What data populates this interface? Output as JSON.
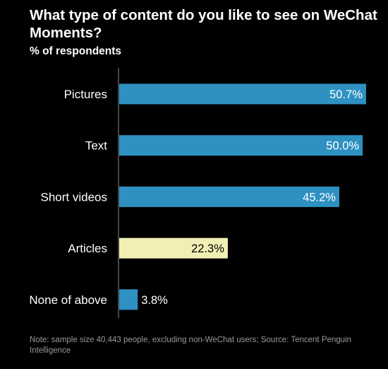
{
  "chart_data": {
    "type": "bar",
    "orientation": "horizontal",
    "title": "What type of content do you like to see on WeChat Moments?",
    "subtitle": "% of respondents",
    "categories": [
      "Pictures",
      "Text",
      "Short videos",
      "Articles",
      "None of above"
    ],
    "values": [
      50.7,
      50.0,
      45.2,
      22.3,
      3.8
    ],
    "value_labels": [
      "50.7%",
      "50.0%",
      "45.2%",
      "22.3%",
      "3.8%"
    ],
    "bar_colors": [
      "#2e91c2",
      "#2e91c2",
      "#2e91c2",
      "#f2efb5",
      "#2e91c2"
    ],
    "xlim": [
      0,
      51
    ],
    "grid": false,
    "legend": "none",
    "note": "Note: sample size 40,443 people, excluding non-WeChat users;  Source: Tencent Penguin Intelligence"
  }
}
